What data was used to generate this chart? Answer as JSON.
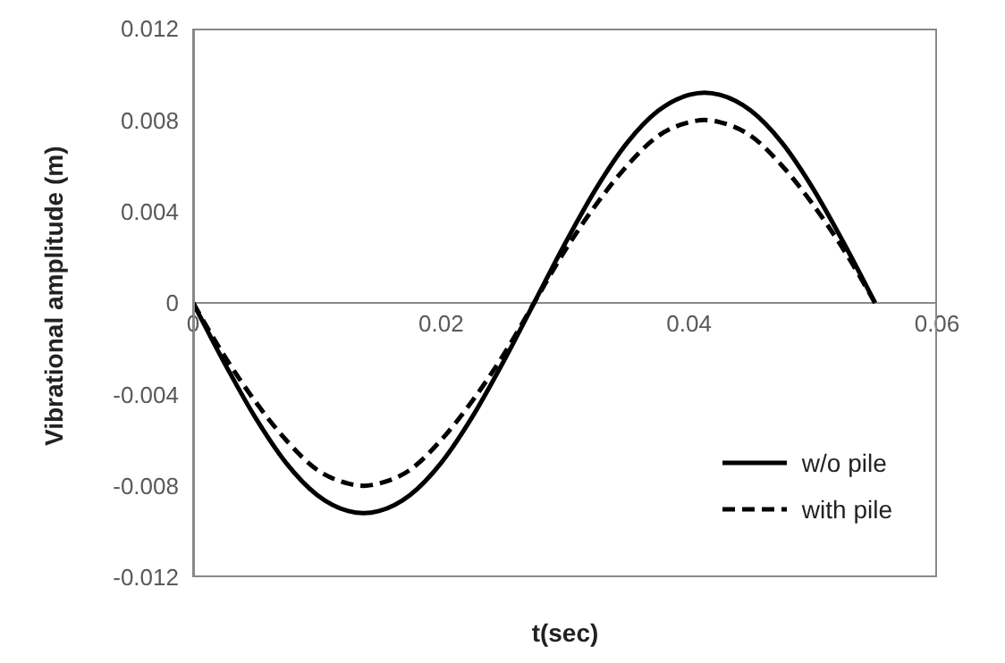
{
  "chart_data": {
    "type": "line",
    "xlabel": "t(sec)",
    "ylabel": "Vibrational amplitude (m)",
    "x": [
      0,
      0.0025,
      0.005,
      0.0075,
      0.01,
      0.0125,
      0.01375,
      0.015,
      0.0175,
      0.02,
      0.0225,
      0.025,
      0.0275,
      0.03,
      0.0325,
      0.035,
      0.0375,
      0.04,
      0.04125,
      0.0425,
      0.045,
      0.0475,
      0.05,
      0.0525,
      0.055
    ],
    "series": [
      {
        "name": "w/o pile",
        "color": "#000000",
        "line_style": "solid",
        "values": [
          0,
          -0.0026,
          -0.005,
          -0.007,
          -0.0084,
          -0.0091,
          -0.0092,
          -0.0091,
          -0.0084,
          -0.007,
          -0.005,
          -0.0026,
          0,
          0.0026,
          0.005,
          0.007,
          0.0084,
          0.0091,
          0.0092,
          0.0091,
          0.0084,
          0.007,
          0.005,
          0.0026,
          0
        ]
      },
      {
        "name": "with pile",
        "color": "#000000",
        "line_style": "dashed",
        "values": [
          0,
          -0.0023,
          -0.0043,
          -0.006,
          -0.0073,
          -0.0079,
          -0.008,
          -0.0079,
          -0.0073,
          -0.006,
          -0.0043,
          -0.0023,
          0,
          0.0023,
          0.0043,
          0.006,
          0.0073,
          0.0079,
          0.008,
          0.0079,
          0.0073,
          0.006,
          0.0043,
          0.0023,
          0
        ]
      }
    ],
    "xlim": [
      0,
      0.06
    ],
    "xticks": [
      0,
      0.02,
      0.04,
      0.06
    ],
    "ylim": [
      -0.012,
      0.012
    ],
    "yticks": [
      -0.012,
      -0.008,
      -0.004,
      0,
      0.004,
      0.008,
      0.012
    ],
    "legend": "bottom right"
  }
}
